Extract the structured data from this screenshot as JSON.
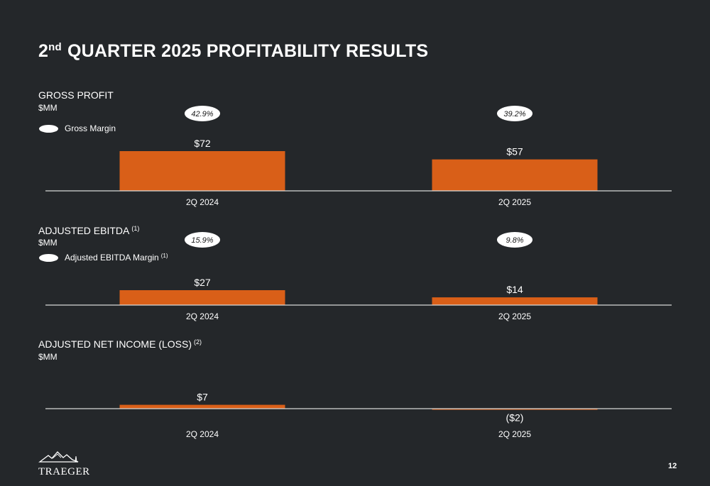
{
  "title_main": "QUARTER 2025 PROFITABILITY RESULTS",
  "title_prefix": "2",
  "title_sup": "nd",
  "colors": {
    "background": "#24272a",
    "bar": "#d95f18",
    "text": "#ffffff"
  },
  "sections": [
    {
      "title": "GROSS PROFIT",
      "footnote": "",
      "unit": "$MM",
      "legend": {
        "label": "Gross Margin",
        "footnote": ""
      }
    },
    {
      "title": "ADJUSTED EBITDA",
      "footnote": "(1)",
      "unit": "$MM",
      "legend": {
        "label": "Adjusted EBITDA Margin",
        "footnote": "(1)"
      }
    },
    {
      "title": "ADJUSTED NET INCOME (LOSS)",
      "footnote": "(2)",
      "unit": "$MM",
      "legend": null
    }
  ],
  "chart_data": [
    {
      "type": "bar",
      "title": "GROSS PROFIT",
      "ylabel": "$MM",
      "categories": [
        "2Q 2024",
        "2Q 2025"
      ],
      "values": [
        72,
        57
      ],
      "value_labels": [
        "$72",
        "$57"
      ],
      "margins": [
        "42.9%",
        "39.2%"
      ],
      "legend": "Gross Margin"
    },
    {
      "type": "bar",
      "title": "ADJUSTED EBITDA (1)",
      "ylabel": "$MM",
      "categories": [
        "2Q 2024",
        "2Q 2025"
      ],
      "values": [
        27,
        14
      ],
      "value_labels": [
        "$27",
        "$14"
      ],
      "margins": [
        "15.9%",
        "9.8%"
      ],
      "legend": "Adjusted EBITDA Margin (1)"
    },
    {
      "type": "bar",
      "title": "ADJUSTED NET INCOME (LOSS) (2)",
      "ylabel": "$MM",
      "categories": [
        "2Q 2024",
        "2Q 2025"
      ],
      "values": [
        7,
        -2
      ],
      "value_labels": [
        "$7",
        "($2)"
      ],
      "margins": null,
      "legend": null
    }
  ],
  "logo": {
    "name": "traeger-logo-icon",
    "text": "TRAEGER"
  },
  "page_number": "12"
}
